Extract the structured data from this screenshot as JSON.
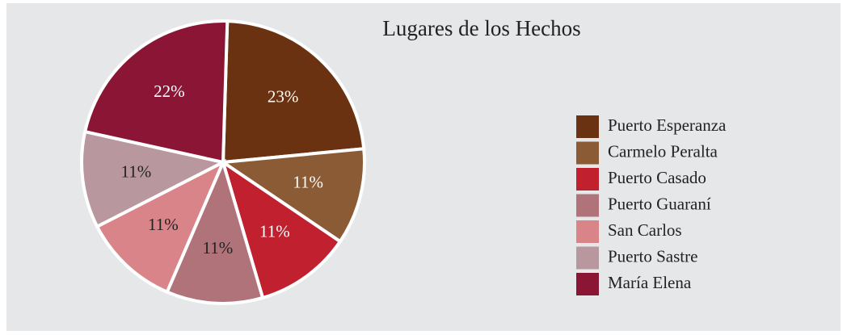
{
  "chart_data": {
    "type": "pie",
    "title": "Lugares de los Hechos",
    "categories": [
      "Puerto Esperanza",
      "Carmelo Peralta",
      "Puerto Casado",
      "Puerto Guaraní",
      "San Carlos",
      "Puerto Sastre",
      "María Elena"
    ],
    "values": [
      23,
      11,
      11,
      11,
      11,
      11,
      22
    ],
    "value_labels": [
      "23%",
      "11%",
      "11%",
      "11%",
      "11%",
      "11%",
      "22%"
    ],
    "colors": [
      "#6a3210",
      "#8b5b36",
      "#c1202f",
      "#b0737a",
      "#d98489",
      "#b9979e",
      "#8a1535"
    ],
    "legend": "right"
  }
}
